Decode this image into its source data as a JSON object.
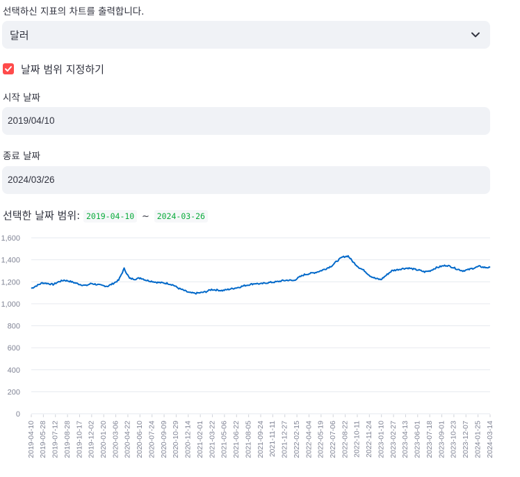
{
  "caption": "선택하신 지표의 차트를 출력합니다.",
  "select": {
    "value": "달러"
  },
  "checkbox": {
    "label": "날짜 범위 지정하기",
    "checked": true
  },
  "start": {
    "label": "시작 날짜",
    "value": "2019/04/10"
  },
  "end": {
    "label": "종료 날짜",
    "value": "2024/03/26"
  },
  "range": {
    "prefix": "선택한 날짜 범위:",
    "start": "2019-04-10",
    "separator": "~",
    "end": "2024-03-26"
  },
  "colors": {
    "accent": "#ff4b4b",
    "line": "#0068c9",
    "code": "#09ab3b"
  },
  "chart_data": {
    "type": "line",
    "ylim": [
      0,
      1600
    ],
    "y_ticks": [
      "0",
      "200",
      "400",
      "600",
      "800",
      "1,000",
      "1,200",
      "1,400",
      "1,600"
    ],
    "x_ticks": [
      "2019-04-10",
      "2019-05-28",
      "2019-07-12",
      "2019-08-28",
      "2019-10-17",
      "2019-12-02",
      "2020-01-20",
      "2020-03-06",
      "2020-04-22",
      "2020-06-10",
      "2020-07-24",
      "2020-09-09",
      "2020-10-29",
      "2020-12-14",
      "2021-02-01",
      "2021-03-22",
      "2021-05-06",
      "2021-06-22",
      "2021-08-05",
      "2021-09-24",
      "2021-11-11",
      "2021-12-27",
      "2022-02-15",
      "2022-04-04",
      "2022-05-19",
      "2022-07-06",
      "2022-08-22",
      "2022-10-11",
      "2022-11-24",
      "2023-01-10",
      "2023-02-27",
      "2023-04-13",
      "2023-06-01",
      "2023-07-18",
      "2023-09-01",
      "2023-10-23",
      "2023-12-07",
      "2024-01-25",
      "2024-03-14"
    ],
    "series": [
      {
        "color": "#0068c9",
        "values": [
          1140,
          1165,
          1190,
          1185,
          1175,
          1200,
          1215,
          1205,
          1190,
          1175,
          1165,
          1185,
          1175,
          1165,
          1160,
          1185,
          1215,
          1320,
          1230,
          1225,
          1235,
          1215,
          1205,
          1195,
          1190,
          1185,
          1170,
          1140,
          1120,
          1100,
          1095,
          1100,
          1110,
          1130,
          1125,
          1120,
          1130,
          1140,
          1150,
          1165,
          1175,
          1185,
          1180,
          1190,
          1195,
          1200,
          1210,
          1215,
          1210,
          1240,
          1265,
          1275,
          1285,
          1300,
          1320,
          1345,
          1390,
          1425,
          1435,
          1375,
          1330,
          1300,
          1255,
          1230,
          1220,
          1260,
          1300,
          1310,
          1320,
          1325,
          1315,
          1305,
          1290,
          1300,
          1325,
          1340,
          1350,
          1335,
          1315,
          1300,
          1310,
          1325,
          1340,
          1330,
          1330
        ]
      }
    ]
  }
}
